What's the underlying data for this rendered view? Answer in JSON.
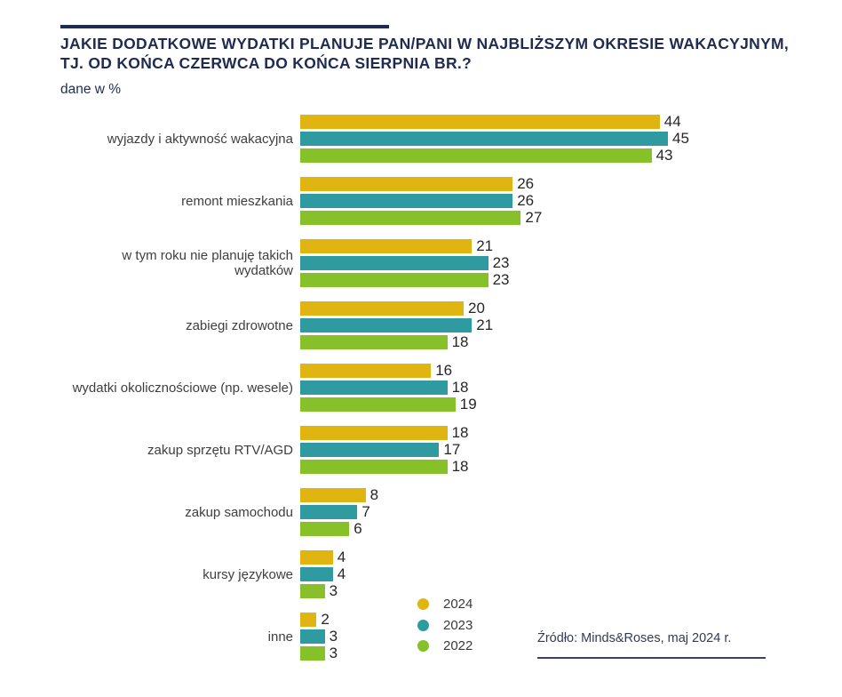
{
  "header": {
    "title_line1": "JAKIE DODATKOWE WYDATKI PLANUJE PAN/PANI W NAJBLIŻSZYM OKRESIE WAKACYJNYM,",
    "title_line2": "TJ. OD KOŃCA CZERWCA DO KOŃCA SIERPNIA BR.?",
    "subtitle": "dane w %"
  },
  "chart_data": {
    "type": "bar",
    "orientation": "horizontal",
    "unit": "%",
    "title": "JAKIE DODATKOWE WYDATKI PLANUJE PAN/PANI W NAJBLIŻSZYM OKRESIE WAKACYJNYM, TJ. OD KOŃCA CZERWCA DO KOŃCA SIERPNIA BR.?",
    "subtitle": "dane w %",
    "categories": [
      "wyjazdy i aktywność wakacyjna",
      "remont mieszkania",
      "w tym roku nie planuję takich wydatków",
      "zabiegi zdrowotne",
      "wydatki okolicznościowe (np. wesele)",
      "zakup sprzętu RTV/AGD",
      "zakup samochodu",
      "kursy językowe",
      "inne"
    ],
    "series": [
      {
        "name": "2024",
        "color": "#E0B511",
        "values": [
          44,
          26,
          21,
          20,
          16,
          18,
          8,
          4,
          2
        ]
      },
      {
        "name": "2023",
        "color": "#2F9BA0",
        "values": [
          45,
          26,
          23,
          21,
          18,
          17,
          7,
          4,
          3
        ]
      },
      {
        "name": "2022",
        "color": "#86C12A",
        "values": [
          43,
          27,
          23,
          18,
          19,
          18,
          6,
          3,
          3
        ]
      }
    ],
    "value_labels": true,
    "xlim": [
      0,
      47
    ],
    "grid": false,
    "legend_position": "bottom-center"
  },
  "footer": {
    "source": "Źródło: Minds&Roses, maj 2024 r."
  },
  "colors": {
    "accent_navy": "#1F2B50",
    "source_underline": "#3A4168",
    "category_label_text": "#3E3E3E",
    "value_label_text": "#262626",
    "legend_text": "#3A3A3A",
    "background": "#FFFFFF"
  }
}
